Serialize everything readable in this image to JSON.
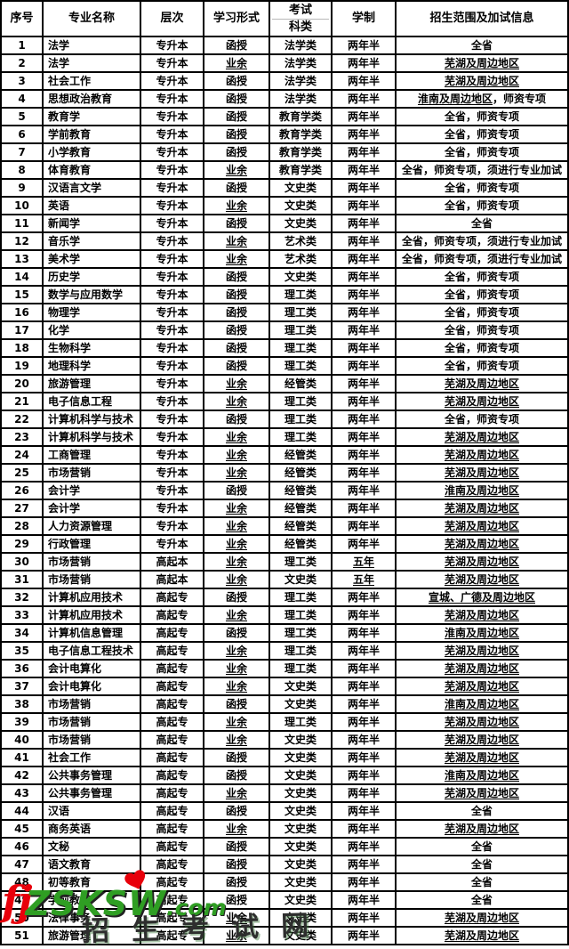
{
  "table": {
    "headers": {
      "no": "序号",
      "major": "专业名称",
      "level": "层次",
      "form": "学习形式",
      "exam_line1": "考试",
      "exam_line2": "科类",
      "duration": "学制",
      "scope": "招生范围及加试信息"
    },
    "underline_rules": {
      "form_underlined_value": "业余",
      "duration_underlined_value": "五年"
    },
    "rows": [
      [
        "1",
        "法学",
        "专升本",
        "函授",
        "法学类",
        "两年半",
        "",
        "全省"
      ],
      [
        "2",
        "法学",
        "专升本",
        "业余",
        "法学类",
        "两年半",
        "芜湖及周边地区",
        ""
      ],
      [
        "3",
        "社会工作",
        "专升本",
        "函授",
        "法学类",
        "两年半",
        "芜湖及周边地区",
        ""
      ],
      [
        "4",
        "思想政治教育",
        "专升本",
        "函授",
        "法学类",
        "两年半",
        "淮南及周边地区",
        "，师资专项"
      ],
      [
        "5",
        "教育学",
        "专升本",
        "函授",
        "教育学类",
        "两年半",
        "",
        "全省，师资专项"
      ],
      [
        "6",
        "学前教育",
        "专升本",
        "函授",
        "教育学类",
        "两年半",
        "",
        "全省，师资专项"
      ],
      [
        "7",
        "小学教育",
        "专升本",
        "函授",
        "教育学类",
        "两年半",
        "",
        "全省，师资专项"
      ],
      [
        "8",
        "体育教育",
        "专升本",
        "业余",
        "教育学类",
        "两年半",
        "",
        "全省，师资专项，须进行专业加试"
      ],
      [
        "9",
        "汉语言文学",
        "专升本",
        "函授",
        "文史类",
        "两年半",
        "",
        "全省，师资专项"
      ],
      [
        "10",
        "英语",
        "专升本",
        "业余",
        "文史类",
        "两年半",
        "",
        "全省，师资专项"
      ],
      [
        "11",
        "新闻学",
        "专升本",
        "函授",
        "文史类",
        "两年半",
        "",
        "全省"
      ],
      [
        "12",
        "音乐学",
        "专升本",
        "业余",
        "艺术类",
        "两年半",
        "",
        "全省，师资专项，须进行专业加试"
      ],
      [
        "13",
        "美术学",
        "专升本",
        "业余",
        "艺术类",
        "两年半",
        "",
        "全省，师资专项，须进行专业加试"
      ],
      [
        "14",
        "历史学",
        "专升本",
        "函授",
        "文史类",
        "两年半",
        "",
        "全省，师资专项"
      ],
      [
        "15",
        "数学与应用数学",
        "专升本",
        "函授",
        "理工类",
        "两年半",
        "",
        "全省，师资专项"
      ],
      [
        "16",
        "物理学",
        "专升本",
        "函授",
        "理工类",
        "两年半",
        "",
        "全省，师资专项"
      ],
      [
        "17",
        "化学",
        "专升本",
        "函授",
        "理工类",
        "两年半",
        "",
        "全省，师资专项"
      ],
      [
        "18",
        "生物科学",
        "专升本",
        "函授",
        "理工类",
        "两年半",
        "",
        "全省，师资专项"
      ],
      [
        "19",
        "地理科学",
        "专升本",
        "函授",
        "理工类",
        "两年半",
        "",
        "全省，师资专项"
      ],
      [
        "20",
        "旅游管理",
        "专升本",
        "业余",
        "经管类",
        "两年半",
        "芜湖及周边地区",
        ""
      ],
      [
        "21",
        "电子信息工程",
        "专升本",
        "业余",
        "理工类",
        "两年半",
        "芜湖及周边地区",
        ""
      ],
      [
        "22",
        "计算机科学与技术",
        "专升本",
        "函授",
        "理工类",
        "两年半",
        "",
        "全省，师资专项"
      ],
      [
        "23",
        "计算机科学与技术",
        "专升本",
        "业余",
        "理工类",
        "两年半",
        "芜湖及周边地区",
        ""
      ],
      [
        "24",
        "工商管理",
        "专升本",
        "业余",
        "经管类",
        "两年半",
        "芜湖及周边地区",
        ""
      ],
      [
        "25",
        "市场营销",
        "专升本",
        "业余",
        "经管类",
        "两年半",
        "芜湖及周边地区",
        ""
      ],
      [
        "26",
        "会计学",
        "专升本",
        "函授",
        "经管类",
        "两年半",
        "淮南及周边地区",
        ""
      ],
      [
        "27",
        "会计学",
        "专升本",
        "业余",
        "经管类",
        "两年半",
        "芜湖及周边地区",
        ""
      ],
      [
        "28",
        "人力资源管理",
        "专升本",
        "业余",
        "经管类",
        "两年半",
        "芜湖及周边地区",
        ""
      ],
      [
        "29",
        "行政管理",
        "专升本",
        "业余",
        "经管类",
        "两年半",
        "芜湖及周边地区",
        ""
      ],
      [
        "30",
        "市场营销",
        "高起本",
        "业余",
        "理工类",
        "五年",
        "芜湖及周边地区",
        ""
      ],
      [
        "31",
        "市场营销",
        "高起本",
        "业余",
        "文史类",
        "五年",
        "芜湖及周边地区",
        ""
      ],
      [
        "32",
        "计算机应用技术",
        "高起专",
        "函授",
        "理工类",
        "两年半",
        "宣城、广德及周边地区",
        ""
      ],
      [
        "33",
        "计算机应用技术",
        "高起专",
        "业余",
        "理工类",
        "两年半",
        "芜湖及周边地区",
        ""
      ],
      [
        "34",
        "计算机信息管理",
        "高起专",
        "函授",
        "理工类",
        "两年半",
        "淮南及周边地区",
        ""
      ],
      [
        "35",
        "电子信息工程技术",
        "高起专",
        "业余",
        "理工类",
        "两年半",
        "芜湖及周边地区",
        ""
      ],
      [
        "36",
        "会计电算化",
        "高起专",
        "业余",
        "理工类",
        "两年半",
        "芜湖及周边地区",
        ""
      ],
      [
        "37",
        "会计电算化",
        "高起专",
        "业余",
        "文史类",
        "两年半",
        "芜湖及周边地区",
        ""
      ],
      [
        "38",
        "市场营销",
        "高起专",
        "函授",
        "文史类",
        "两年半",
        "淮南及周边地区",
        ""
      ],
      [
        "39",
        "市场营销",
        "高起专",
        "业余",
        "理工类",
        "两年半",
        "芜湖及周边地区",
        ""
      ],
      [
        "40",
        "市场营销",
        "高起专",
        "业余",
        "文史类",
        "两年半",
        "芜湖及周边地区",
        ""
      ],
      [
        "41",
        "社会工作",
        "高起专",
        "函授",
        "文史类",
        "两年半",
        "芜湖及周边地区",
        ""
      ],
      [
        "42",
        "公共事务管理",
        "高起专",
        "函授",
        "文史类",
        "两年半",
        "淮南及周边地区",
        ""
      ],
      [
        "43",
        "公共事务管理",
        "高起专",
        "业余",
        "文史类",
        "两年半",
        "芜湖及周边地区",
        ""
      ],
      [
        "44",
        "汉语",
        "高起专",
        "函授",
        "文史类",
        "两年半",
        "",
        "全省"
      ],
      [
        "45",
        "商务英语",
        "高起专",
        "业余",
        "文史类",
        "两年半",
        "芜湖及周边地区",
        ""
      ],
      [
        "46",
        "文秘",
        "高起专",
        "函授",
        "文史类",
        "两年半",
        "",
        "全省"
      ],
      [
        "47",
        "语文教育",
        "高起专",
        "函授",
        "文史类",
        "两年半",
        "",
        "全省"
      ],
      [
        "48",
        "初等教育",
        "高起专",
        "函授",
        "文史类",
        "两年半",
        "",
        "全省"
      ],
      [
        "49",
        "学前教育",
        "高起专",
        "函授",
        "文史类",
        "两年半",
        "",
        "全省"
      ],
      [
        "50",
        "法律事务",
        "高起专",
        "业余",
        "文史类",
        "两年半",
        "芜湖及周边地区",
        ""
      ],
      [
        "51",
        "旅游管理",
        "高起专",
        "业余",
        "文史类",
        "两年半",
        "芜湖及周边地区",
        ""
      ]
    ]
  },
  "watermark": {
    "prefix": "fj",
    "brand": "ZSKSW",
    "suffix": ".com",
    "caption": "招生考试网",
    "colors": {
      "prefix_red": "#e8000b",
      "brand_green": "#2f9e23",
      "caption_dark": "#2e2e2e"
    }
  }
}
